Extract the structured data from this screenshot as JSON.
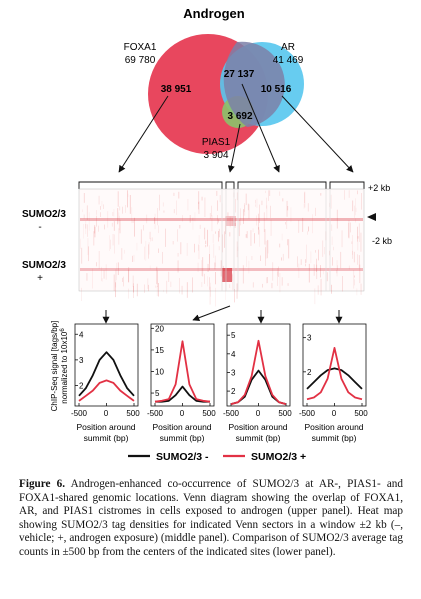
{
  "title": "Androgen",
  "venn": {
    "foxa1": {
      "name": "FOXA1",
      "total": "69 780",
      "unique": "38 951",
      "color": "#e8475e"
    },
    "ar": {
      "name": "AR",
      "total": "41 469",
      "unique": "10 516",
      "color": "#56c6ee"
    },
    "pias1": {
      "name": "PIAS1",
      "total": "3 904",
      "shared": "3 692",
      "color": "#8cc06a"
    },
    "foxa1_ar_shared": "27 137"
  },
  "heatmap": {
    "rows": [
      {
        "label_top": "SUMO2/3",
        "label_bottom": "-"
      },
      {
        "label_top": "SUMO2/3",
        "label_bottom": "+"
      }
    ],
    "top_mark": "+2 kb",
    "bottom_mark": "-2 kb"
  },
  "profiles": {
    "ylabel_line1": "ChIP-Seq signal [tags/bp]",
    "ylabel_line2": "normalized to 10x10",
    "ylabel_sup": "6",
    "xlabel_line1": "Position around",
    "xlabel_line2": "summit (bp)",
    "xticks": [
      "-500",
      "0",
      "500"
    ],
    "legend": [
      {
        "label": "SUMO2/3 -",
        "color": "#111111"
      },
      {
        "label": "SUMO2/3 +",
        "color": "#e23144"
      }
    ]
  },
  "chart_data": [
    {
      "type": "line",
      "x": [
        -500,
        -375,
        -250,
        -125,
        0,
        125,
        250,
        375,
        500
      ],
      "yticks": [
        "2",
        "3",
        "4"
      ],
      "ylim": [
        1.2,
        4.4
      ],
      "series": [
        {
          "name": "SUMO2/3 -",
          "values": [
            1.6,
            1.9,
            2.4,
            3.0,
            3.3,
            3.0,
            2.4,
            1.9,
            1.6
          ]
        },
        {
          "name": "SUMO2/3 +",
          "values": [
            1.4,
            1.6,
            1.8,
            2.1,
            2.2,
            2.1,
            1.8,
            1.6,
            1.4
          ]
        }
      ]
    },
    {
      "type": "line",
      "x": [
        -500,
        -375,
        -250,
        -125,
        0,
        125,
        250,
        375,
        500
      ],
      "yticks": [
        "5",
        "10",
        "15",
        "20"
      ],
      "ylim": [
        2,
        21
      ],
      "series": [
        {
          "name": "SUMO2/3 -",
          "values": [
            3,
            3,
            3.2,
            4.5,
            6.5,
            4.5,
            3.2,
            3,
            3
          ]
        },
        {
          "name": "SUMO2/3 +",
          "values": [
            3,
            3.2,
            3.6,
            7,
            17,
            7,
            3.6,
            3.2,
            3
          ]
        }
      ]
    },
    {
      "type": "line",
      "x": [
        -500,
        -375,
        -250,
        -125,
        0,
        125,
        250,
        375,
        500
      ],
      "yticks": [
        "2",
        "3",
        "4",
        "5"
      ],
      "ylim": [
        1.2,
        5.6
      ],
      "series": [
        {
          "name": "SUMO2/3 -",
          "values": [
            1.3,
            1.4,
            1.7,
            2.6,
            3.1,
            2.6,
            1.7,
            1.4,
            1.3
          ]
        },
        {
          "name": "SUMO2/3 +",
          "values": [
            1.3,
            1.4,
            1.8,
            2.8,
            4.7,
            2.8,
            1.8,
            1.4,
            1.3
          ]
        }
      ]
    },
    {
      "type": "line",
      "x": [
        -500,
        -375,
        -250,
        -125,
        0,
        125,
        250,
        375,
        500
      ],
      "yticks": [
        "2",
        "3"
      ],
      "ylim": [
        1.0,
        3.4
      ],
      "series": [
        {
          "name": "SUMO2/3 -",
          "values": [
            1.5,
            1.7,
            1.9,
            2.05,
            2.1,
            2.05,
            1.9,
            1.7,
            1.5
          ]
        },
        {
          "name": "SUMO2/3 +",
          "values": [
            1.2,
            1.25,
            1.4,
            1.8,
            2.7,
            1.8,
            1.4,
            1.25,
            1.2
          ]
        }
      ]
    }
  ],
  "caption": {
    "label": "Figure 6.",
    "text": "Androgen-enhanced co-occurrence of SUMO2/3 at AR-, PIAS1- and FOXA1-shared genomic locations. Venn diagram showing the overlap of FOXA1, AR, and PIAS1 cistromes in cells exposed to androgen (upper panel). Heat map showing SUMO2/3 tag densities for indicated Venn sectors in a window ±2 kb (–, vehicle; +, androgen exposure) (middle panel). Comparison of SUMO2/3 average tag counts in ±500 bp from the centers of the indicated sites (lower panel)."
  }
}
